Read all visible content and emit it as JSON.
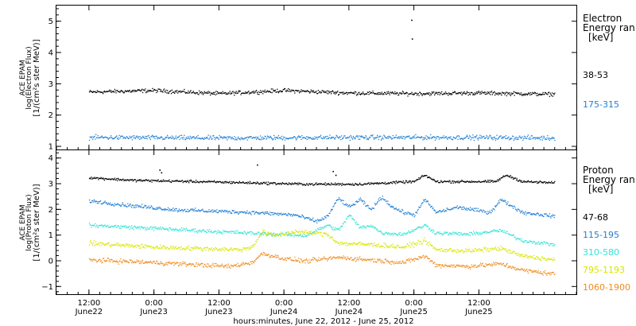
{
  "chart_data": [
    {
      "type": "scatter",
      "panel": "top",
      "instrument_label": "ACE EPAM",
      "ylabel": "log(Electron Flux)",
      "yunit": "[1/(cm²s ster MeV)]",
      "ylim": [
        0.9,
        5.5
      ],
      "yticks": [
        1,
        2,
        3,
        4,
        5
      ],
      "legend_title": [
        "Electron",
        "Energy ran",
        "[keV]"
      ],
      "series": [
        {
          "name": "38-53",
          "color": "#000000",
          "base": 2.72,
          "noise": 0.05,
          "trend": [
            [
              0,
              2.75
            ],
            [
              12,
              2.8
            ],
            [
              24,
              2.7
            ],
            [
              36,
              2.8
            ],
            [
              48,
              2.72
            ],
            [
              60,
              2.7
            ],
            [
              72,
              2.72
            ],
            [
              86,
              2.68
            ]
          ],
          "spikes": [
            [
              59.5,
              5.05
            ],
            [
              59.6,
              4.45
            ]
          ]
        },
        {
          "name": "175-315",
          "color": "#1f7fd6",
          "base": 1.3,
          "noise": 0.06,
          "trend": [
            [
              0,
              1.3
            ],
            [
              24,
              1.28
            ],
            [
              48,
              1.3
            ],
            [
              72,
              1.3
            ],
            [
              86,
              1.28
            ]
          ],
          "spikes": []
        }
      ]
    },
    {
      "type": "scatter",
      "panel": "bottom",
      "instrument_label": "ACE EPAM",
      "ylabel": "log(Proton Flux)",
      "yunit": "[1/(cm²s ster MeV)]",
      "ylim": [
        -1.3,
        4.3
      ],
      "yticks": [
        -1,
        0,
        1,
        2,
        3,
        4
      ],
      "legend_title": [
        "Proton",
        "Energy ran",
        "[keV]"
      ],
      "series": [
        {
          "name": "47-68",
          "color": "#000000",
          "noise": 0.04,
          "trend": [
            [
              0,
              3.25
            ],
            [
              8,
              3.15
            ],
            [
              20,
              3.1
            ],
            [
              30,
              3.05
            ],
            [
              40,
              3.0
            ],
            [
              50,
              3.0
            ],
            [
              60,
              3.1
            ],
            [
              62,
              3.35
            ],
            [
              64,
              3.1
            ],
            [
              75,
              3.1
            ],
            [
              77,
              3.35
            ],
            [
              80,
              3.1
            ],
            [
              86,
              3.05
            ]
          ],
          "spikes": [
            [
              13,
              3.55
            ],
            [
              13.3,
              3.45
            ],
            [
              31,
              3.75
            ],
            [
              45,
              3.5
            ],
            [
              45.5,
              3.35
            ]
          ]
        },
        {
          "name": "115-195",
          "color": "#1f7fd6",
          "noise": 0.06,
          "trend": [
            [
              0,
              2.35
            ],
            [
              6,
              2.2
            ],
            [
              16,
              2.0
            ],
            [
              30,
              1.9
            ],
            [
              38,
              1.8
            ],
            [
              42,
              1.55
            ],
            [
              44,
              1.75
            ],
            [
              46,
              2.45
            ],
            [
              48,
              2.1
            ],
            [
              50,
              2.4
            ],
            [
              52,
              2.0
            ],
            [
              54,
              2.5
            ],
            [
              56,
              2.1
            ],
            [
              58,
              1.9
            ],
            [
              60,
              1.8
            ],
            [
              62,
              2.4
            ],
            [
              64,
              1.9
            ],
            [
              68,
              2.1
            ],
            [
              74,
              1.9
            ],
            [
              76,
              2.4
            ],
            [
              80,
              1.9
            ],
            [
              86,
              1.75
            ]
          ],
          "spikes": []
        },
        {
          "name": "310-580",
          "color": "#33e3d8",
          "noise": 0.06,
          "trend": [
            [
              0,
              1.4
            ],
            [
              10,
              1.3
            ],
            [
              24,
              1.15
            ],
            [
              34,
              1.05
            ],
            [
              40,
              1.0
            ],
            [
              44,
              1.4
            ],
            [
              46,
              1.2
            ],
            [
              48,
              1.8
            ],
            [
              50,
              1.3
            ],
            [
              52,
              1.4
            ],
            [
              54,
              1.1
            ],
            [
              58,
              1.05
            ],
            [
              62,
              1.4
            ],
            [
              64,
              1.1
            ],
            [
              70,
              1.05
            ],
            [
              76,
              1.2
            ],
            [
              80,
              0.8
            ],
            [
              86,
              0.65
            ]
          ],
          "spikes": []
        },
        {
          "name": "795-1193",
          "color": "#d7e600",
          "noise": 0.07,
          "trend": [
            [
              0,
              0.7
            ],
            [
              12,
              0.55
            ],
            [
              28,
              0.45
            ],
            [
              30,
              0.55
            ],
            [
              32,
              1.15
            ],
            [
              34,
              1.0
            ],
            [
              38,
              1.15
            ],
            [
              44,
              1.05
            ],
            [
              46,
              0.7
            ],
            [
              52,
              0.65
            ],
            [
              58,
              0.55
            ],
            [
              62,
              0.8
            ],
            [
              64,
              0.45
            ],
            [
              70,
              0.4
            ],
            [
              76,
              0.5
            ],
            [
              80,
              0.2
            ],
            [
              86,
              0.05
            ]
          ],
          "spikes": []
        },
        {
          "name": "1060-1900",
          "color": "#f08a1c",
          "noise": 0.07,
          "trend": [
            [
              0,
              0.05
            ],
            [
              12,
              -0.05
            ],
            [
              26,
              -0.2
            ],
            [
              30,
              -0.05
            ],
            [
              32,
              0.3
            ],
            [
              36,
              0.1
            ],
            [
              40,
              0.0
            ],
            [
              46,
              0.15
            ],
            [
              52,
              0.05
            ],
            [
              58,
              -0.05
            ],
            [
              62,
              0.2
            ],
            [
              64,
              -0.15
            ],
            [
              70,
              -0.2
            ],
            [
              76,
              -0.1
            ],
            [
              80,
              -0.35
            ],
            [
              86,
              -0.5
            ]
          ],
          "spikes": []
        }
      ]
    }
  ],
  "x_axis": {
    "range_hours": [
      -6,
      90
    ],
    "data_end_hours": 86,
    "ticks": [
      {
        "h": 0,
        "time": "12:00",
        "date": "June22"
      },
      {
        "h": 12,
        "time": "0:00",
        "date": "June23"
      },
      {
        "h": 24,
        "time": "12:00",
        "date": "June23"
      },
      {
        "h": 36,
        "time": "0:00",
        "date": "June24"
      },
      {
        "h": 48,
        "time": "12:00",
        "date": "June24"
      },
      {
        "h": 60,
        "time": "0:00",
        "date": "June25"
      },
      {
        "h": 72,
        "time": "12:00",
        "date": "June25"
      }
    ],
    "xlabel": "hours:minutes, June 22, 2012 - June 25, 2012"
  }
}
